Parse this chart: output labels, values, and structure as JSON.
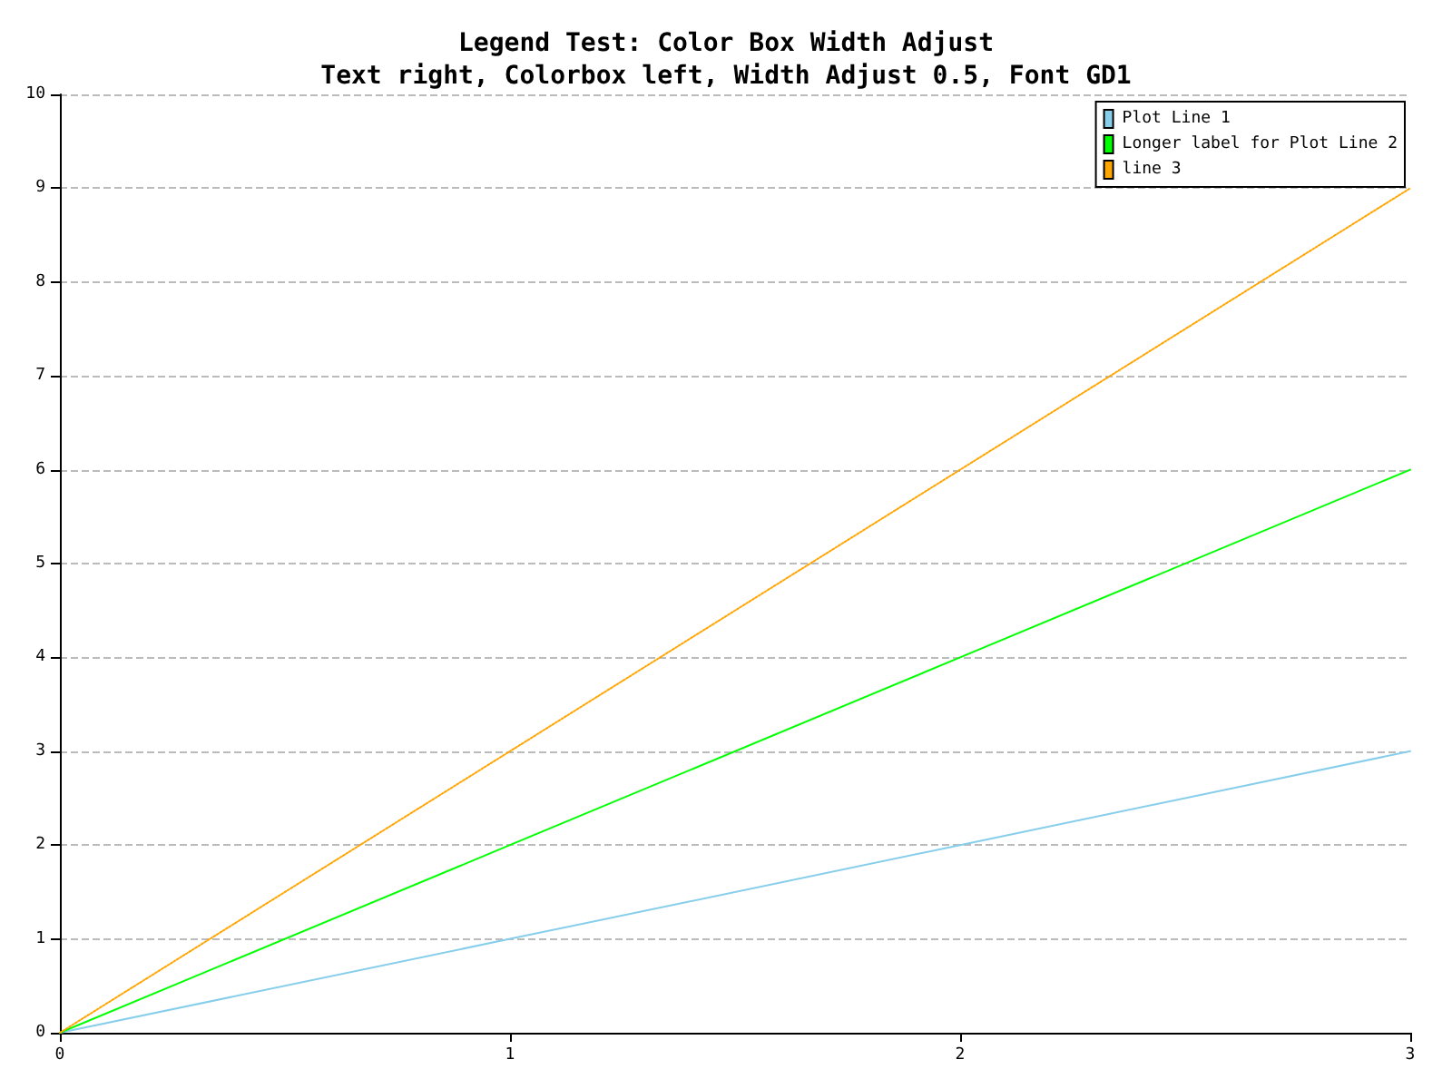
{
  "chart_data": {
    "type": "line",
    "title": "Legend Test: Color Box Width Adjust",
    "subtitle": "Text right, Colorbox left, Width Adjust 0.5, Font GD1",
    "x": [
      0,
      1,
      2,
      3
    ],
    "series": [
      {
        "name": "Plot Line 1",
        "color": "#87ceeb",
        "values": [
          0,
          1,
          2,
          3
        ],
        "line_style": "solid"
      },
      {
        "name": "Longer label for Plot Line 2",
        "color": "#00ff00",
        "values": [
          0,
          2,
          4,
          6
        ],
        "line_style": "solid"
      },
      {
        "name": "line 3",
        "color": "#ffa500",
        "values": [
          0,
          3,
          6,
          9
        ],
        "line_style": "dotted"
      }
    ],
    "xlim": [
      0,
      3
    ],
    "xticks": [
      0,
      1,
      2,
      3
    ],
    "ylim": [
      0,
      10
    ],
    "yticks": [
      0,
      1,
      2,
      3,
      4,
      5,
      6,
      7,
      8,
      9,
      10
    ],
    "grid": "y",
    "legend": "top right",
    "marker": "none"
  }
}
